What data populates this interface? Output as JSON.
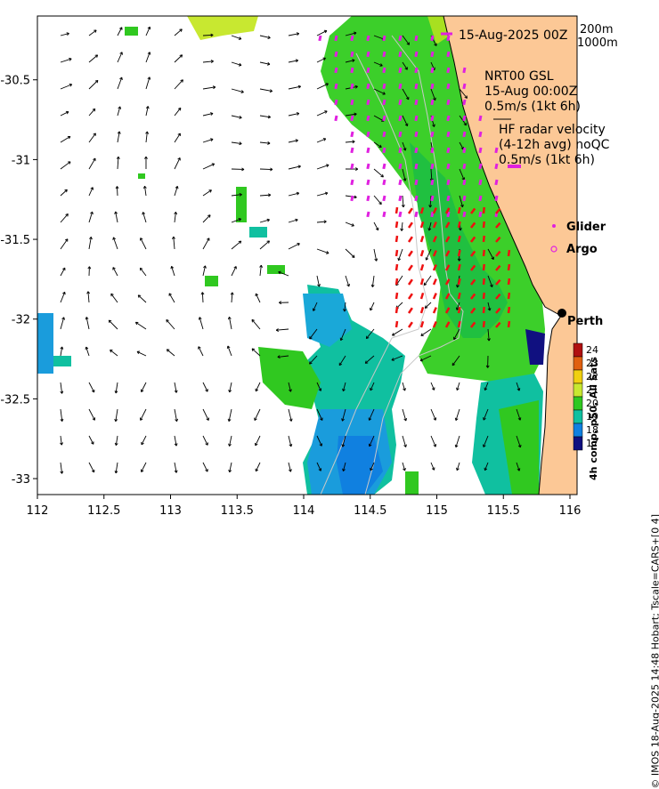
{
  "map": {
    "x_ticks": [
      "112",
      "112.5",
      "113",
      "113.5",
      "114",
      "114.5",
      "115",
      "115.5",
      "116"
    ],
    "y_ticks": [
      "-30.5",
      "-31",
      "-31.5",
      "-32",
      "-32.5",
      "-33"
    ],
    "y_tick_values": [
      -30.5,
      -31,
      -31.5,
      -32,
      -32.5,
      -33
    ],
    "x_tick_values": [
      112,
      112.5,
      113,
      113.5,
      114,
      114.5,
      115,
      115.5,
      116
    ],
    "lon_range": [
      112,
      116
    ],
    "lat_range": [
      -33.1,
      -30.1
    ]
  },
  "title": {
    "date": "15-Aug-2025 00Z",
    "isobath_1": "200m",
    "isobath_2": "1000m"
  },
  "model": {
    "name": "NRT00 GSL",
    "time": "15-Aug 00:00Z",
    "scale": "0.5m/s (1kt 6h)"
  },
  "hf_radar": {
    "title": "HF radar velocity",
    "subtitle": "(4-12h avg) noQC",
    "scale": "0.5m/s (1kt 6h)",
    "color": "#e020e0"
  },
  "legend": {
    "glider": "Glider",
    "argo": "Argo",
    "glider_color": "#e020e0",
    "argo_color": "#e020e0"
  },
  "place": {
    "name": "Perth",
    "lon": 115.86,
    "lat": -31.95
  },
  "colorbar": {
    "labels": [
      "24",
      "23",
      "22",
      "21",
      "20",
      "19",
      "18",
      "17"
    ],
    "colors": [
      "#b01010",
      "#e06010",
      "#f0d010",
      "#c8e830",
      "#30c820",
      "#10c0a0",
      "#1080e0",
      "#101080"
    ],
    "title": "4h comp, p50, All Sats"
  },
  "credit": "© IMOS 18-Aug-2025 14:48 Hobart; Tscale=CARS+[0 4]",
  "colors": {
    "land": "#fcc896",
    "ocean": "#ffffff",
    "radar_red": "#ee1111"
  }
}
